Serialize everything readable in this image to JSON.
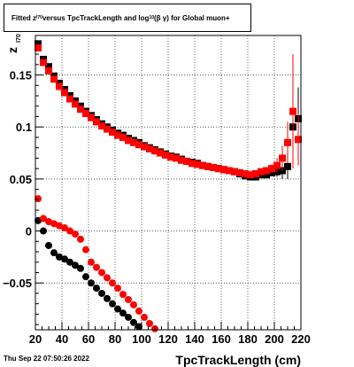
{
  "title_parts": {
    "a": "Fitted  z",
    "a_sub": "I70",
    "b": "  versus TpcTrackLength and log",
    "b_sub": "10",
    "c": " (β  γ) for Global muon+"
  },
  "footer": {
    "date": "Thu Sep 22 07:50:26 2022"
  },
  "chart_data": {
    "type": "scatter",
    "title": "Fitted  zI70  versus TpcTrackLength and log10 (β  γ) for Global muon+",
    "xlabel": "TpcTrackLength (cm)",
    "ylabel": "z",
    "ylabel_sub": "I70",
    "xlim": [
      20,
      220
    ],
    "ylim": [
      -0.095,
      0.188
    ],
    "xticks": [
      20,
      40,
      60,
      80,
      100,
      120,
      140,
      160,
      180,
      200,
      220
    ],
    "xtick_labels": [
      "20",
      "40",
      "60",
      "80",
      "100",
      "120",
      "140",
      "160",
      "180",
      "200",
      "220"
    ],
    "yticks": [
      -0.05,
      0,
      0.05,
      0.1,
      0.15
    ],
    "ytick_labels": [
      "−0.05",
      "0",
      "0.05",
      "0.1",
      "0.15"
    ],
    "grid": true,
    "colors": {
      "black": "#000000",
      "red": "#ff0000"
    },
    "series": [
      {
        "color": "#000000",
        "marker": "square",
        "x": [
          22,
          26,
          30,
          34,
          38,
          42,
          46,
          50,
          54,
          58,
          62,
          66,
          70,
          74,
          78,
          82,
          86,
          90,
          94,
          98,
          102,
          106,
          110,
          114,
          118,
          122,
          126,
          130,
          134,
          138,
          142,
          146,
          150,
          154,
          158,
          162,
          166,
          170,
          174,
          178,
          182,
          186,
          190,
          194,
          198,
          202,
          206,
          210,
          214,
          218
        ],
        "y": [
          0.18,
          0.165,
          0.158,
          0.149,
          0.142,
          0.136,
          0.13,
          0.125,
          0.12,
          0.115,
          0.111,
          0.107,
          0.103,
          0.1,
          0.097,
          0.094,
          0.092,
          0.089,
          0.087,
          0.085,
          0.082,
          0.08,
          0.078,
          0.076,
          0.074,
          0.072,
          0.071,
          0.069,
          0.067,
          0.066,
          0.065,
          0.063,
          0.062,
          0.061,
          0.06,
          0.059,
          0.058,
          0.057,
          0.055,
          0.053,
          0.052,
          0.052,
          0.054,
          0.054,
          0.056,
          0.057,
          0.058,
          0.062,
          0.1,
          0.108
        ],
        "err": [
          0,
          0,
          0,
          0,
          0,
          0,
          0,
          0,
          0,
          0,
          0,
          0,
          0,
          0,
          0,
          0,
          0,
          0,
          0,
          0,
          0,
          0,
          0,
          0,
          0,
          0,
          0,
          0,
          0,
          0,
          0,
          0,
          0,
          0,
          0,
          0,
          0,
          0,
          0,
          0,
          0,
          0,
          0,
          0,
          0,
          0.005,
          0.008,
          0.012,
          0.025,
          0.03
        ]
      },
      {
        "color": "#ff0000",
        "marker": "square",
        "x": [
          22,
          26,
          30,
          34,
          38,
          42,
          46,
          50,
          54,
          58,
          62,
          66,
          70,
          74,
          78,
          82,
          86,
          90,
          94,
          98,
          102,
          106,
          110,
          114,
          118,
          122,
          126,
          130,
          134,
          138,
          142,
          146,
          150,
          154,
          158,
          162,
          166,
          170,
          174,
          178,
          182,
          186,
          190,
          194,
          198,
          202,
          206,
          210,
          214,
          218
        ],
        "y": [
          0.176,
          0.162,
          0.154,
          0.146,
          0.139,
          0.133,
          0.127,
          0.122,
          0.117,
          0.113,
          0.109,
          0.105,
          0.101,
          0.098,
          0.095,
          0.092,
          0.09,
          0.087,
          0.085,
          0.083,
          0.081,
          0.079,
          0.077,
          0.075,
          0.073,
          0.071,
          0.07,
          0.068,
          0.067,
          0.065,
          0.064,
          0.063,
          0.062,
          0.061,
          0.06,
          0.059,
          0.058,
          0.057,
          0.056,
          0.055,
          0.054,
          0.055,
          0.057,
          0.058,
          0.06,
          0.063,
          0.07,
          0.085,
          0.115,
          0.088
        ],
        "err": [
          0,
          0,
          0,
          0,
          0,
          0,
          0,
          0,
          0,
          0,
          0,
          0,
          0,
          0,
          0,
          0,
          0,
          0,
          0,
          0,
          0,
          0,
          0,
          0,
          0,
          0,
          0,
          0,
          0,
          0,
          0,
          0,
          0,
          0,
          0,
          0,
          0,
          0,
          0,
          0,
          0,
          0,
          0,
          0,
          0.004,
          0.007,
          0.012,
          0.02,
          0.055,
          0.025
        ]
      },
      {
        "color": "#000000",
        "marker": "circle",
        "x": [
          22,
          26,
          30,
          34,
          38,
          42,
          46,
          50,
          54,
          58,
          62,
          66,
          70,
          74,
          78,
          82,
          86,
          90,
          94,
          98,
          102
        ],
        "y": [
          0.01,
          0.0,
          -0.014,
          -0.021,
          -0.025,
          -0.027,
          -0.03,
          -0.033,
          -0.036,
          -0.044,
          -0.05,
          -0.055,
          -0.06,
          -0.065,
          -0.07,
          -0.075,
          -0.079,
          -0.083,
          -0.088,
          -0.092,
          -0.096
        ]
      },
      {
        "color": "#ff0000",
        "marker": "circle",
        "x": [
          22,
          26,
          30,
          34,
          38,
          42,
          46,
          50,
          54,
          58,
          62,
          66,
          70,
          74,
          78,
          82,
          86,
          90,
          94,
          98,
          102,
          106,
          110
        ],
        "y": [
          0.031,
          0.012,
          0.009,
          0.007,
          0.005,
          0.003,
          0.0,
          -0.003,
          -0.008,
          -0.018,
          -0.03,
          -0.035,
          -0.04,
          -0.045,
          -0.05,
          -0.055,
          -0.061,
          -0.066,
          -0.071,
          -0.077,
          -0.083,
          -0.089,
          -0.094
        ]
      }
    ]
  }
}
